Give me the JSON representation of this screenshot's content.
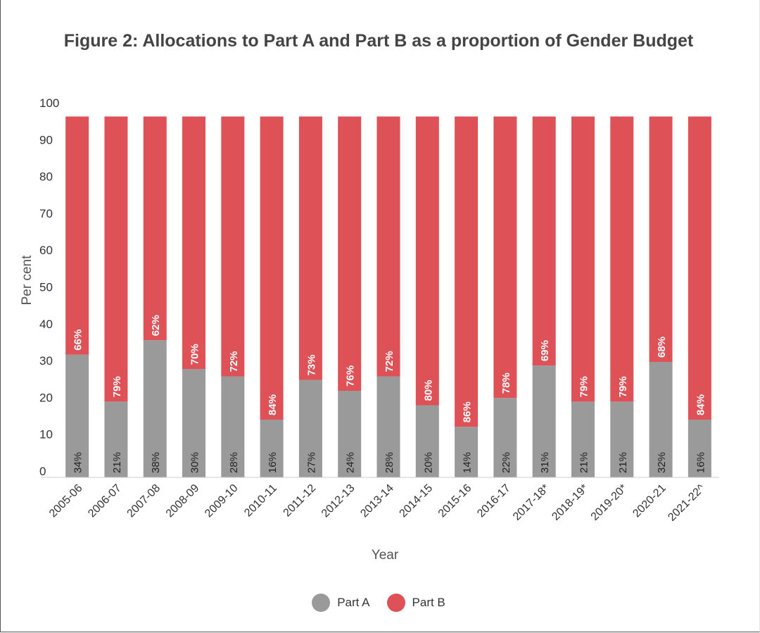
{
  "title": "Figure 2: Allocations to Part A and Part B as a proportion of Gender Budget",
  "chart_data": {
    "type": "bar",
    "stacked": true,
    "xlabel": "Year",
    "ylabel": "Per cent",
    "ylim": [
      0,
      100
    ],
    "yticks": [
      0,
      10,
      20,
      30,
      40,
      50,
      60,
      70,
      80,
      90,
      100
    ],
    "categories": [
      "2005-06",
      "2006-07",
      "2007-08",
      "2008-09",
      "2009-10",
      "2010-11",
      "2011-12",
      "2012-13",
      "2013-14",
      "2014-15",
      "2015-16",
      "2016-17",
      "2017-18*",
      "2018-19*",
      "2019-20*",
      "2020-21",
      "2021-22^"
    ],
    "series": [
      {
        "name": "Part A",
        "color": "#9a9a9a",
        "values": [
          34,
          21,
          38,
          30,
          28,
          16,
          27,
          24,
          28,
          20,
          14,
          22,
          31,
          21,
          21,
          32,
          16
        ],
        "labels": [
          "34%",
          "21%",
          "38%",
          "30%",
          "28%",
          "16%",
          "27%",
          "24%",
          "28%",
          "20%",
          "14%",
          "22%",
          "31%",
          "21%",
          "21%",
          "32%",
          "16%"
        ]
      },
      {
        "name": "Part B",
        "color": "#de5156",
        "values": [
          66,
          79,
          62,
          70,
          72,
          84,
          73,
          76,
          72,
          80,
          86,
          78,
          69,
          79,
          79,
          68,
          84
        ],
        "labels": [
          "66%",
          "79%",
          "62%",
          "70%",
          "72%",
          "84%",
          "73%",
          "76%",
          "72%",
          "80%",
          "86%",
          "78%",
          "69%",
          "79%",
          "79%",
          "68%",
          "84%"
        ]
      }
    ],
    "grid": false,
    "legend": "bottom"
  }
}
